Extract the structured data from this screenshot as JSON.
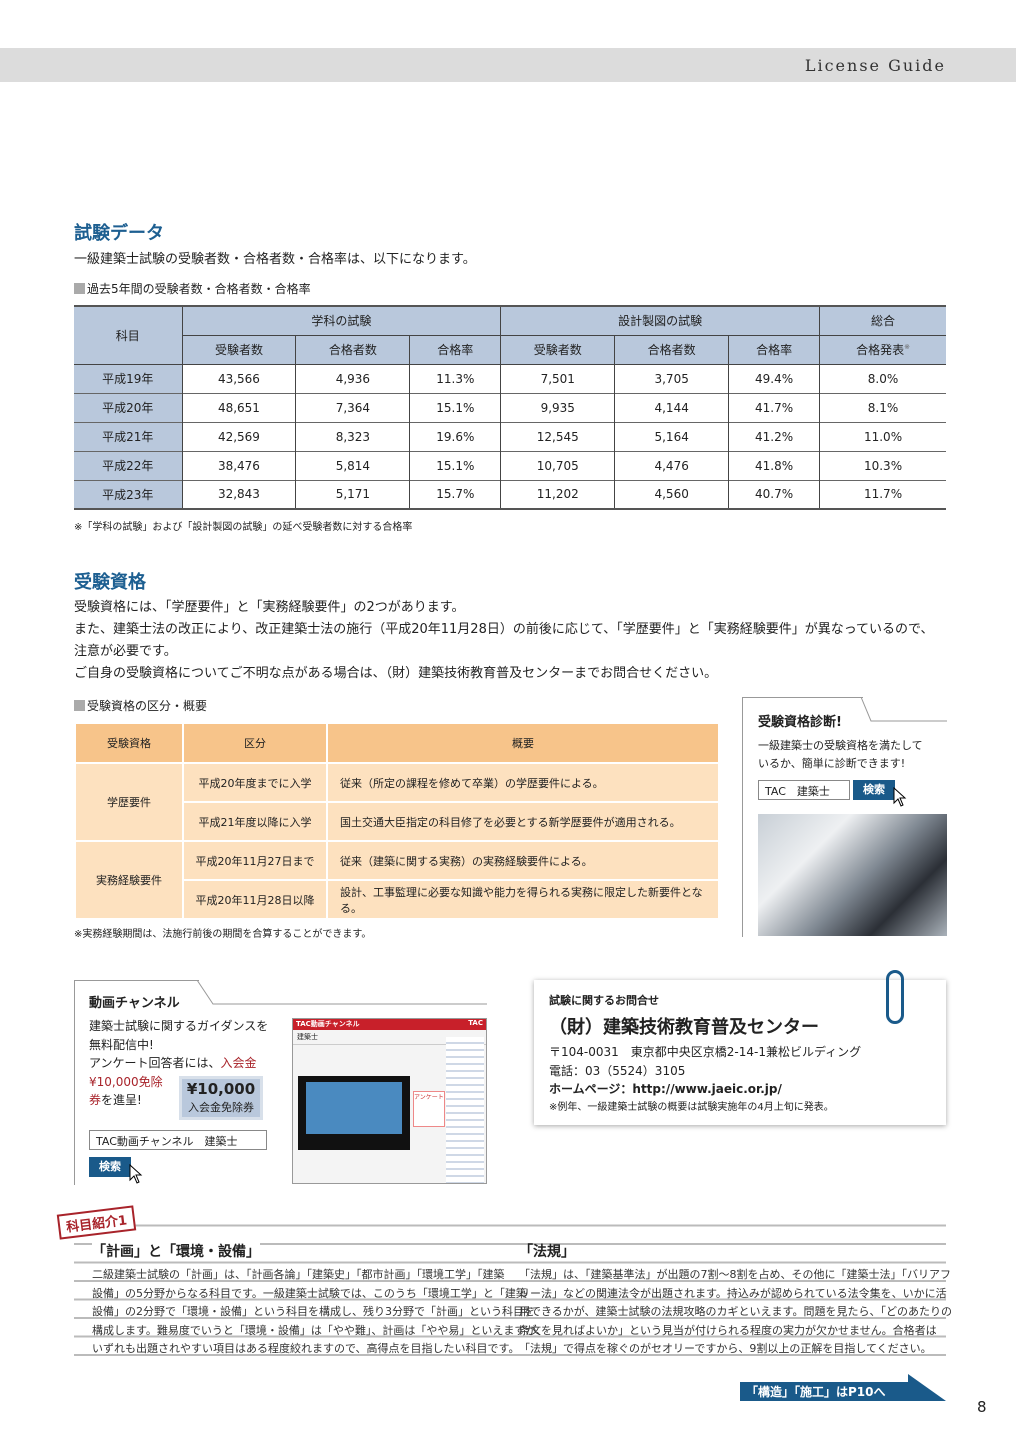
{
  "header": {
    "guide": "License Guide"
  },
  "exam_data": {
    "title": "試験データ",
    "intro": "一級建築士試験の受験者数・合格者数・合格率は、以下になります。",
    "table_caption": "過去5年間の受験者数・合格者数・合格率",
    "group_headers": [
      "科目",
      "学科の試験",
      "設計製図の試験",
      "総合"
    ],
    "sub_headers": [
      "受験者数",
      "合格者数",
      "合格率",
      "受験者数",
      "合格者数",
      "合格率",
      "合格発表"
    ],
    "note_mark": "※",
    "rows": [
      [
        "平成19年",
        "43,566",
        "4,936",
        "11.3%",
        "7,501",
        "3,705",
        "49.4%",
        "8.0%"
      ],
      [
        "平成20年",
        "48,651",
        "7,364",
        "15.1%",
        "9,935",
        "4,144",
        "41.7%",
        "8.1%"
      ],
      [
        "平成21年",
        "42,569",
        "8,323",
        "19.6%",
        "12,545",
        "5,164",
        "41.2%",
        "11.0%"
      ],
      [
        "平成22年",
        "38,476",
        "5,814",
        "15.1%",
        "10,705",
        "4,476",
        "41.8%",
        "10.3%"
      ],
      [
        "平成23年",
        "32,843",
        "5,171",
        "15.7%",
        "11,202",
        "4,560",
        "40.7%",
        "11.7%"
      ]
    ],
    "footnote": "※「学科の試験」および「設計製図の試験」の延べ受験者数に対する合格率"
  },
  "qualification": {
    "title": "受験資格",
    "paragraphs": [
      "受験資格には、「学歴要件」と「実務経験要件」の2つがあります。",
      "また、建築士法の改正により、改正建築士法の施行（平成20年11月28日）の前後に応じて、「学歴要件」と「実務経験要件」が異なっているので、",
      "注意が必要です。",
      "ご自身の受験資格についてご不明な点がある場合は、（財）建築技術教育普及センターまでお問合せください。"
    ],
    "table_caption": "受験資格の区分・概要",
    "headers": [
      "受験資格",
      "区分",
      "概要"
    ],
    "groups": [
      {
        "name": "学歴要件",
        "rows": [
          [
            "平成20年度までに入学",
            "従来（所定の課程を修めて卒業）の学歴要件による。"
          ],
          [
            "平成21年度以降に入学",
            "国土交通大臣指定の科目修了を必要とする新学歴要件が適用される。"
          ]
        ]
      },
      {
        "name": "実務経験要件",
        "rows": [
          [
            "平成20年11月27日まで",
            "従来（建築に関する実務）の実務経験要件による。"
          ],
          [
            "平成20年11月28日以降",
            "設計、工事監理に必要な知識や能力を得られる実務に限定した新要件となる。"
          ]
        ]
      }
    ],
    "footnote": "※実務経験期間は、法施行前後の期間を合算することができます。"
  },
  "diagnosis": {
    "title": "受験資格診断!",
    "text1": "一級建築士の受験資格を満たして",
    "text2": "いるか、簡単に診断できます!",
    "search_value": "TAC　建築士",
    "search_button": "検索"
  },
  "video": {
    "title": "動画チャンネル",
    "line1": "建築士試験に関するガイダンスを",
    "line2": "無料配信中!",
    "line3a": "アンケート回答者には、",
    "line3b": "入会金",
    "line4": "¥10,000免除",
    "line5a": "券",
    "line5b": "を進呈!",
    "coupon_amount": "¥10,000",
    "coupon_label": "入会金免除券",
    "search_value": "TAC動画チャンネル　建築士",
    "search_button": "検索",
    "screenshot_header": "TAC動画チャンネル",
    "screenshot_logo": "TAC",
    "screenshot_section": "建築士",
    "screenshot_banner": "アンケート"
  },
  "contact": {
    "label": "試験に関するお問合せ",
    "org": "（財）建築技術教育普及センター",
    "address": "〒104-0031　東京都中央区京橋2-14-1兼松ビルディング",
    "phone": "電話：03（5524）3105",
    "homepage_label": "ホームページ：",
    "homepage_url": "http://www.jaeic.or.jp/",
    "note": "※例年、一級建築士試験の概要は試験実施年の4月上旬に発表。"
  },
  "subjects": {
    "badge": "科目紹介1",
    "left": {
      "title": "「計画」と「環境・設備」",
      "lines": [
        "二級建築士試験の「計画」は、「計画各論」「建築史」「都市計画」「環境工学」「建築",
        "設備」の5分野からなる科目です。一級建築士試験では、このうち「環境工学」と「建築",
        "設備」の2分野で「環境・設備」という科目を構成し、残り3分野で「計画」という科目を",
        "構成します。難易度でいうと「環境・設備」は「やや難」、計画は「やや易」といえますが、",
        "いずれも出題されやすい項目はある程度絞れますので、高得点を目指したい科目です。"
      ]
    },
    "right": {
      "title": "「法規」",
      "lines": [
        "「法規」は、「建築基準法」が出題の7割～8割を占め、その他に「建築士法」「バリアフ",
        "リー法」などの関連法令が出題されます。持込みが認められている法令集を、いかに活",
        "用できるかが、建築士試験の法規攻略のカギといえます。問題を見たら、「どのあたりの",
        "条文を見ればよいか」という見当が付けられる程度の実力が欠かせません。合格者は",
        "「法規」で得点を稼ぐのがセオリーですから、9割以上の正解を目指してください。"
      ]
    },
    "next_link": "「構造」「施工」はP10へ"
  },
  "page_number": "8",
  "colors": {
    "accent_blue": "#1d5f91",
    "table_blue": "#b9c8dc",
    "orange_header": "#f7c48a",
    "orange_cell": "#fde1bf",
    "badge_red": "#a8232a"
  }
}
